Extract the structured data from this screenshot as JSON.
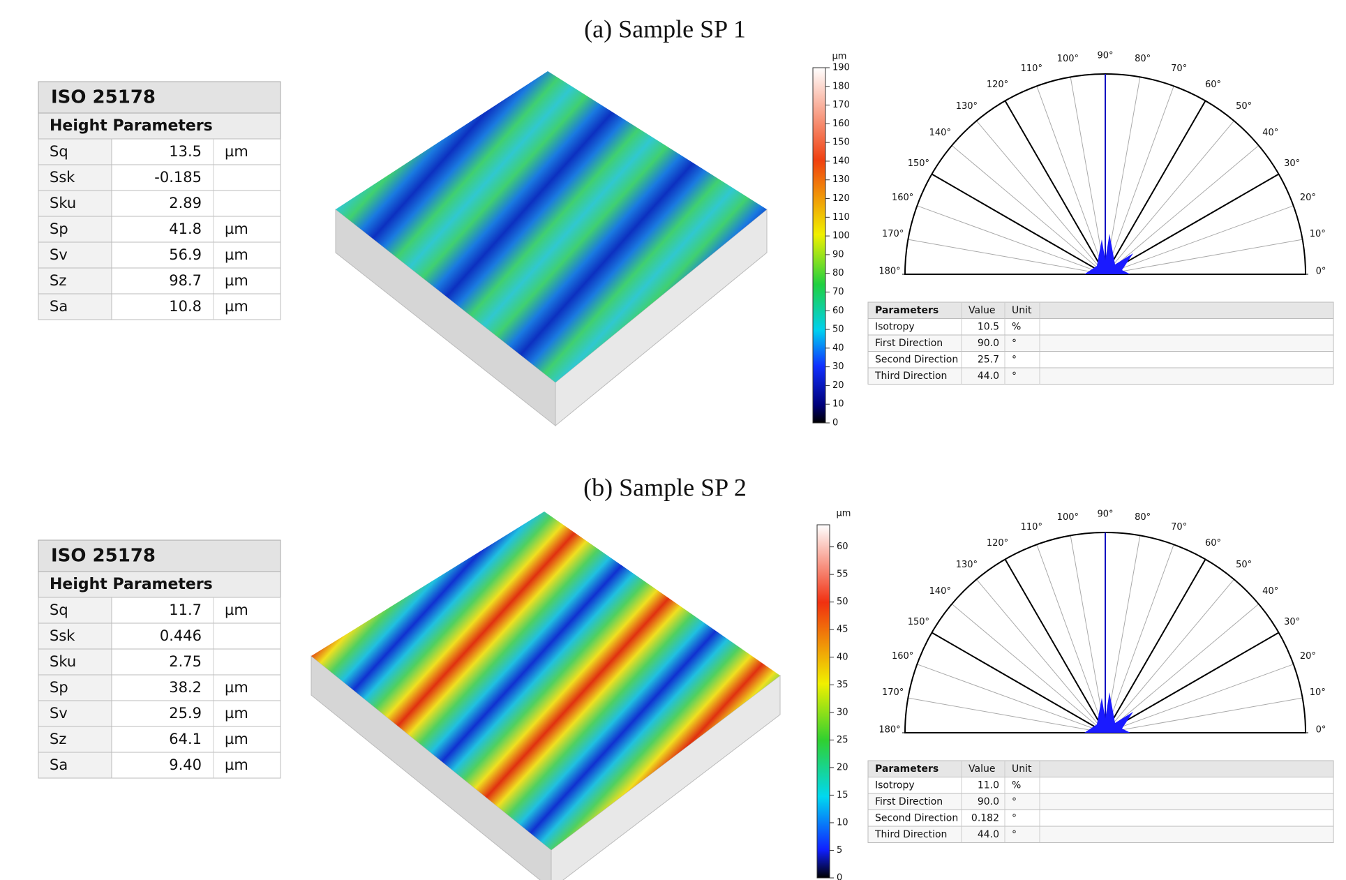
{
  "panels": [
    {
      "title": "(a) Sample SP 1",
      "iso_table": {
        "title": "ISO 25178",
        "subtitle": "Height Parameters",
        "rows": [
          [
            "Sq",
            "13.5",
            "µm"
          ],
          [
            "Ssk",
            "-0.185"
          ],
          [
            "Sku",
            "2.89"
          ],
          [
            "Sp",
            "41.8",
            "µm"
          ],
          [
            "Sv",
            "56.9",
            "µm"
          ],
          [
            "Sz",
            "98.7",
            "µm"
          ],
          [
            "Sa",
            "10.8",
            "µm"
          ]
        ]
      },
      "colorbar": {
        "unit": "µm",
        "lim": [
          0,
          190
        ],
        "ticks": [
          0,
          10,
          20,
          30,
          40,
          50,
          60,
          70,
          80,
          90,
          100,
          110,
          120,
          130,
          140,
          150,
          160,
          170,
          180,
          190
        ]
      },
      "polar": {
        "angle_ticks": [
          {
            "value": 0,
            "label": "0°"
          },
          {
            "value": 10,
            "label": "10°"
          },
          {
            "value": 20,
            "label": "20°"
          },
          {
            "value": 30,
            "label": "30°"
          },
          {
            "value": 40,
            "label": "40°"
          },
          {
            "value": 50,
            "label": "50°"
          },
          {
            "value": 60,
            "label": "60°"
          },
          {
            "value": 70,
            "label": "70°"
          },
          {
            "value": 80,
            "label": "80°"
          },
          {
            "value": 90,
            "label": "90°"
          },
          {
            "value": 100,
            "label": "100°"
          },
          {
            "value": 110,
            "label": "110°"
          },
          {
            "value": 120,
            "label": "120°"
          },
          {
            "value": 130,
            "label": "130°"
          },
          {
            "value": 140,
            "label": "140°"
          },
          {
            "value": 150,
            "label": "150°"
          },
          {
            "value": 160,
            "label": "160°"
          },
          {
            "value": 170,
            "label": "170°"
          },
          {
            "value": 180,
            "label": "180°"
          }
        ]
      },
      "params_table": {
        "header": [
          "Parameters",
          "Value",
          "Unit"
        ],
        "rows": [
          [
            "Isotropy",
            "10.5",
            "%"
          ],
          [
            "First Direction",
            "90.0",
            "°"
          ],
          [
            "Second Direction",
            "25.7",
            "°"
          ],
          [
            "Third Direction",
            "44.0",
            "°"
          ]
        ]
      }
    },
    {
      "title": "(b) Sample SP 2",
      "iso_table": {
        "title": "ISO 25178",
        "subtitle": "Height Parameters",
        "rows": [
          [
            "Sq",
            "11.7",
            "µm"
          ],
          [
            "Ssk",
            "0.446"
          ],
          [
            "Sku",
            "2.75"
          ],
          [
            "Sp",
            "38.2",
            "µm"
          ],
          [
            "Sv",
            "25.9",
            "µm"
          ],
          [
            "Sz",
            "64.1",
            "µm"
          ],
          [
            "Sa",
            "9.40",
            "µm"
          ]
        ]
      },
      "colorbar": {
        "unit": "µm",
        "lim": [
          0,
          64
        ],
        "ticks": [
          0,
          5,
          10,
          15,
          20,
          25,
          30,
          35,
          40,
          45,
          50,
          55,
          60
        ]
      },
      "polar": {
        "angle_ticks": [
          {
            "value": 0,
            "label": "0°"
          },
          {
            "value": 10,
            "label": "10°"
          },
          {
            "value": 20,
            "label": "20°"
          },
          {
            "value": 30,
            "label": "30°"
          },
          {
            "value": 40,
            "label": "40°"
          },
          {
            "value": 50,
            "label": "50°"
          },
          {
            "value": 60,
            "label": "60°"
          },
          {
            "value": 70,
            "label": "70°"
          },
          {
            "value": 80,
            "label": "80°"
          },
          {
            "value": 90,
            "label": "90°"
          },
          {
            "value": 100,
            "label": "100°"
          },
          {
            "value": 110,
            "label": "110°"
          },
          {
            "value": 120,
            "label": "120°"
          },
          {
            "value": 130,
            "label": "130°"
          },
          {
            "value": 140,
            "label": "140°"
          },
          {
            "value": 150,
            "label": "150°"
          },
          {
            "value": 160,
            "label": "160°"
          },
          {
            "value": 170,
            "label": "170°"
          },
          {
            "value": 180,
            "label": "180°"
          }
        ]
      },
      "params_table": {
        "header": [
          "Parameters",
          "Value",
          "Unit"
        ],
        "rows": [
          [
            "Isotropy",
            "11.0",
            "%"
          ],
          [
            "First Direction",
            "90.0",
            "°"
          ],
          [
            "Second Direction",
            "0.182",
            "°"
          ],
          [
            "Third Direction",
            "44.0",
            "°"
          ]
        ]
      }
    }
  ]
}
